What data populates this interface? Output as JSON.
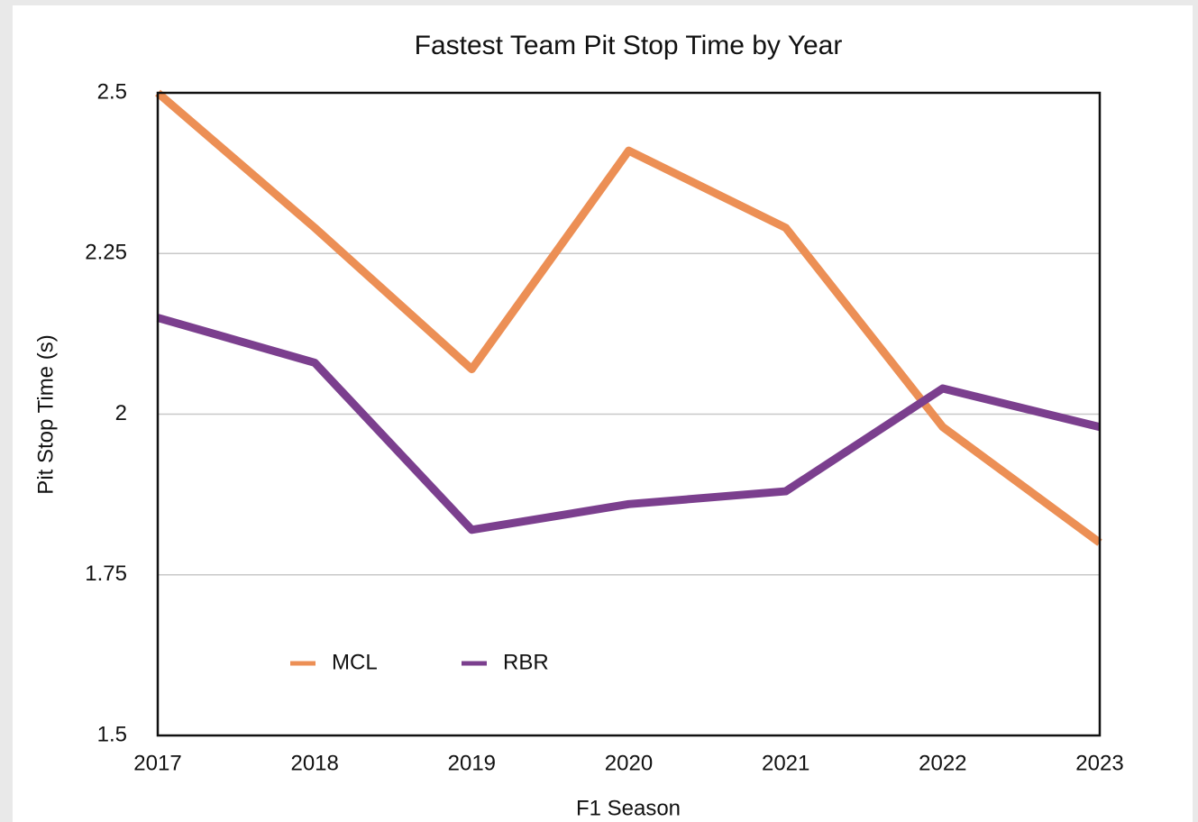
{
  "chart_data": {
    "type": "line",
    "title": "Fastest Team Pit Stop Time by Year",
    "x_label": "F1 Season",
    "y_label": "Pit Stop Time (s)",
    "x": [
      2017,
      2018,
      2019,
      2020,
      2021,
      2022,
      2023
    ],
    "xlim": [
      2017,
      2023
    ],
    "xticks": [
      2017,
      2018,
      2019,
      2020,
      2021,
      2022,
      2023
    ],
    "ylim": [
      1.5,
      2.5
    ],
    "yticks": [
      1.5,
      1.75,
      2,
      2.25,
      2.5
    ],
    "grid": true,
    "legend": "lower left",
    "series": [
      {
        "name": "MCL",
        "color": "#ec8f55",
        "values": [
          2.5,
          2.29,
          2.07,
          2.41,
          2.29,
          1.98,
          1.8
        ]
      },
      {
        "name": "RBR",
        "color": "#7b3f8e",
        "values": [
          2.15,
          2.08,
          1.82,
          1.86,
          1.88,
          2.04,
          1.98
        ]
      }
    ]
  }
}
